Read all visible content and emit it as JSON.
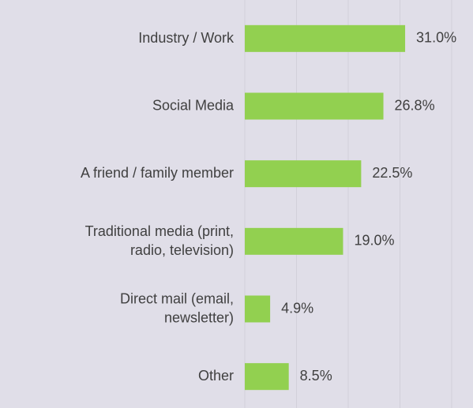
{
  "chart_data": {
    "type": "bar",
    "orientation": "horizontal",
    "categories": [
      "Industry / Work",
      "Social Media",
      "A friend / family member",
      "Traditional media (print,\nradio, television)",
      "Direct mail (email,\nnewsletter)",
      "Other"
    ],
    "values": [
      31.0,
      26.8,
      22.5,
      19.0,
      4.9,
      8.5
    ],
    "value_labels": [
      "31.0%",
      "26.8%",
      "22.5%",
      "19.0%",
      "4.9%",
      "8.5%"
    ],
    "color": "#92d050",
    "xlim": [
      0,
      40
    ],
    "xticks": [
      0,
      10,
      20,
      30,
      40
    ],
    "grid": true
  }
}
